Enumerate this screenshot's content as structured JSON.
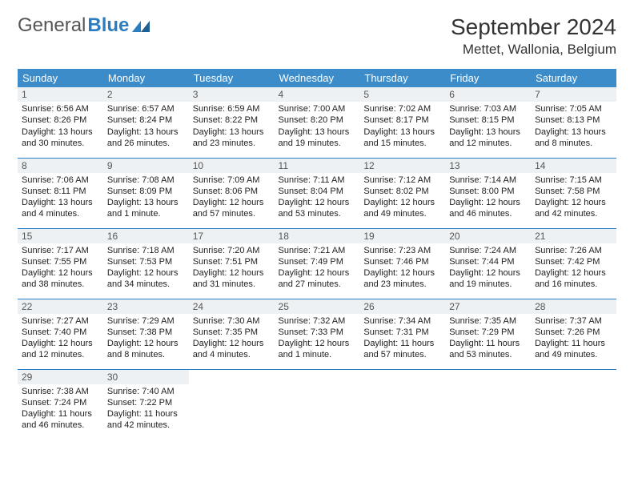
{
  "logo": {
    "text1": "General",
    "text2": "Blue"
  },
  "title": "September 2024",
  "location": "Mettet, Wallonia, Belgium",
  "headers": [
    "Sunday",
    "Monday",
    "Tuesday",
    "Wednesday",
    "Thursday",
    "Friday",
    "Saturday"
  ],
  "colors": {
    "header_bg": "#3b8cc9",
    "header_fg": "#ffffff",
    "daynum_bg": "#eef1f3",
    "border": "#2a7dc0",
    "logo_blue": "#2a7dc0"
  },
  "weeks": [
    [
      {
        "n": "1",
        "sunrise": "6:56 AM",
        "sunset": "8:26 PM",
        "daylight": "13 hours and 30 minutes."
      },
      {
        "n": "2",
        "sunrise": "6:57 AM",
        "sunset": "8:24 PM",
        "daylight": "13 hours and 26 minutes."
      },
      {
        "n": "3",
        "sunrise": "6:59 AM",
        "sunset": "8:22 PM",
        "daylight": "13 hours and 23 minutes."
      },
      {
        "n": "4",
        "sunrise": "7:00 AM",
        "sunset": "8:20 PM",
        "daylight": "13 hours and 19 minutes."
      },
      {
        "n": "5",
        "sunrise": "7:02 AM",
        "sunset": "8:17 PM",
        "daylight": "13 hours and 15 minutes."
      },
      {
        "n": "6",
        "sunrise": "7:03 AM",
        "sunset": "8:15 PM",
        "daylight": "13 hours and 12 minutes."
      },
      {
        "n": "7",
        "sunrise": "7:05 AM",
        "sunset": "8:13 PM",
        "daylight": "13 hours and 8 minutes."
      }
    ],
    [
      {
        "n": "8",
        "sunrise": "7:06 AM",
        "sunset": "8:11 PM",
        "daylight": "13 hours and 4 minutes."
      },
      {
        "n": "9",
        "sunrise": "7:08 AM",
        "sunset": "8:09 PM",
        "daylight": "13 hours and 1 minute."
      },
      {
        "n": "10",
        "sunrise": "7:09 AM",
        "sunset": "8:06 PM",
        "daylight": "12 hours and 57 minutes."
      },
      {
        "n": "11",
        "sunrise": "7:11 AM",
        "sunset": "8:04 PM",
        "daylight": "12 hours and 53 minutes."
      },
      {
        "n": "12",
        "sunrise": "7:12 AM",
        "sunset": "8:02 PM",
        "daylight": "12 hours and 49 minutes."
      },
      {
        "n": "13",
        "sunrise": "7:14 AM",
        "sunset": "8:00 PM",
        "daylight": "12 hours and 46 minutes."
      },
      {
        "n": "14",
        "sunrise": "7:15 AM",
        "sunset": "7:58 PM",
        "daylight": "12 hours and 42 minutes."
      }
    ],
    [
      {
        "n": "15",
        "sunrise": "7:17 AM",
        "sunset": "7:55 PM",
        "daylight": "12 hours and 38 minutes."
      },
      {
        "n": "16",
        "sunrise": "7:18 AM",
        "sunset": "7:53 PM",
        "daylight": "12 hours and 34 minutes."
      },
      {
        "n": "17",
        "sunrise": "7:20 AM",
        "sunset": "7:51 PM",
        "daylight": "12 hours and 31 minutes."
      },
      {
        "n": "18",
        "sunrise": "7:21 AM",
        "sunset": "7:49 PM",
        "daylight": "12 hours and 27 minutes."
      },
      {
        "n": "19",
        "sunrise": "7:23 AM",
        "sunset": "7:46 PM",
        "daylight": "12 hours and 23 minutes."
      },
      {
        "n": "20",
        "sunrise": "7:24 AM",
        "sunset": "7:44 PM",
        "daylight": "12 hours and 19 minutes."
      },
      {
        "n": "21",
        "sunrise": "7:26 AM",
        "sunset": "7:42 PM",
        "daylight": "12 hours and 16 minutes."
      }
    ],
    [
      {
        "n": "22",
        "sunrise": "7:27 AM",
        "sunset": "7:40 PM",
        "daylight": "12 hours and 12 minutes."
      },
      {
        "n": "23",
        "sunrise": "7:29 AM",
        "sunset": "7:38 PM",
        "daylight": "12 hours and 8 minutes."
      },
      {
        "n": "24",
        "sunrise": "7:30 AM",
        "sunset": "7:35 PM",
        "daylight": "12 hours and 4 minutes."
      },
      {
        "n": "25",
        "sunrise": "7:32 AM",
        "sunset": "7:33 PM",
        "daylight": "12 hours and 1 minute."
      },
      {
        "n": "26",
        "sunrise": "7:34 AM",
        "sunset": "7:31 PM",
        "daylight": "11 hours and 57 minutes."
      },
      {
        "n": "27",
        "sunrise": "7:35 AM",
        "sunset": "7:29 PM",
        "daylight": "11 hours and 53 minutes."
      },
      {
        "n": "28",
        "sunrise": "7:37 AM",
        "sunset": "7:26 PM",
        "daylight": "11 hours and 49 minutes."
      }
    ],
    [
      {
        "n": "29",
        "sunrise": "7:38 AM",
        "sunset": "7:24 PM",
        "daylight": "11 hours and 46 minutes."
      },
      {
        "n": "30",
        "sunrise": "7:40 AM",
        "sunset": "7:22 PM",
        "daylight": "11 hours and 42 minutes."
      },
      null,
      null,
      null,
      null,
      null
    ]
  ],
  "labels": {
    "sunrise": "Sunrise: ",
    "sunset": "Sunset: ",
    "daylight": "Daylight: "
  }
}
